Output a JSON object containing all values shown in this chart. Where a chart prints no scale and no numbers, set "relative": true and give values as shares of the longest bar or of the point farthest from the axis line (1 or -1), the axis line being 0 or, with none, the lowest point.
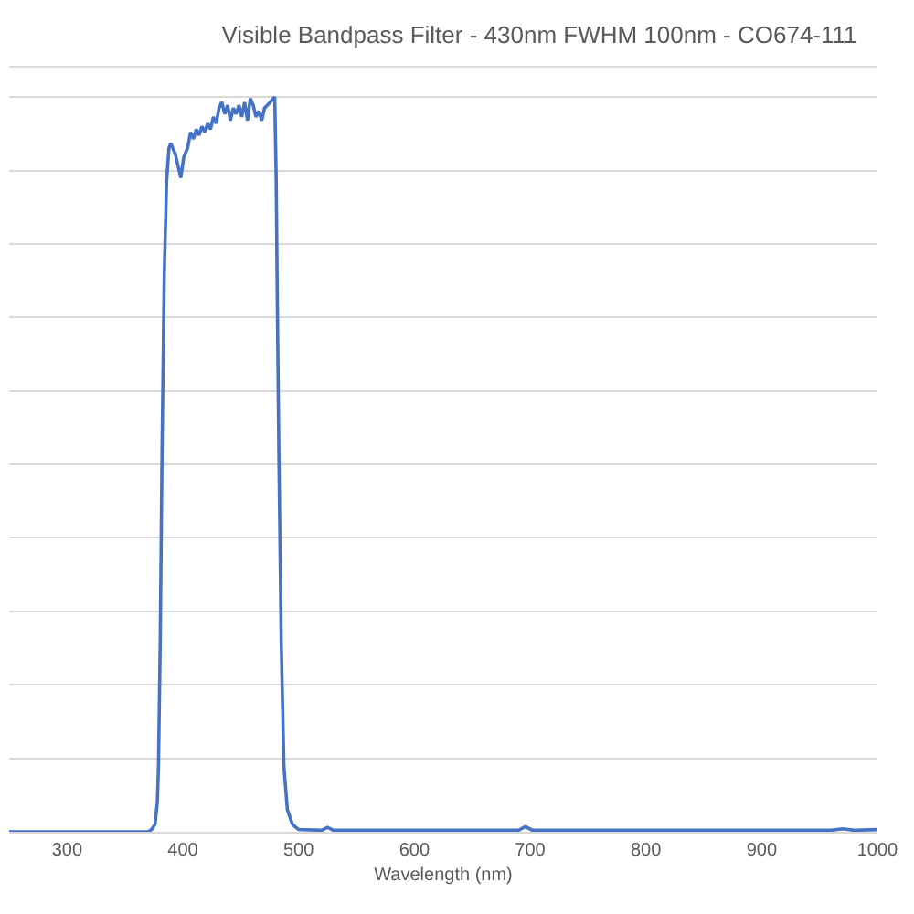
{
  "chart_data": {
    "type": "line",
    "title": "Visible Bandpass Filter - 430nm FWHM 100nm - CO674-111",
    "xlabel": "Wavelength (nm)",
    "x": [
      250,
      300,
      350,
      370,
      373,
      376,
      378,
      379,
      380.5,
      382,
      384,
      386,
      388,
      389.5,
      393.4,
      398.3,
      400.8,
      404.2,
      406.7,
      409.2,
      411.6,
      414.1,
      416.5,
      419,
      421.4,
      423.9,
      426.4,
      428.8,
      431.3,
      433.7,
      436.2,
      438.7,
      441.1,
      443.6,
      446,
      448.5,
      450.9,
      453.4,
      455.9,
      458.3,
      460.8,
      463.2,
      465.7,
      468.2,
      470.6,
      473.1,
      475.5,
      478,
      479.4,
      480.7,
      481.4,
      483,
      485,
      487.3,
      490.3,
      494.7,
      500,
      520,
      525,
      530,
      600,
      690,
      696,
      702,
      800,
      900,
      960,
      970,
      980,
      1000
    ],
    "series": [
      {
        "color": "#4472c4",
        "values": [
          0,
          0,
          0,
          0,
          0.003,
          0.01,
          0.04,
          0.09,
          0.26,
          0.51,
          0.76,
          0.885,
          0.93,
          0.937,
          0.923,
          0.89,
          0.918,
          0.931,
          0.952,
          0.943,
          0.956,
          0.948,
          0.96,
          0.952,
          0.964,
          0.956,
          0.973,
          0.964,
          0.985,
          0.993,
          0.977,
          0.989,
          0.968,
          0.985,
          0.977,
          0.989,
          0.973,
          0.993,
          0.968,
          0.998,
          0.989,
          0.973,
          0.981,
          0.968,
          0.985,
          0.989,
          0.993,
          0.998,
          1,
          0.885,
          0.76,
          0.51,
          0.26,
          0.09,
          0.03,
          0.01,
          0.003,
          0.002,
          0.006,
          0.002,
          0.002,
          0.002,
          0.007,
          0.002,
          0.002,
          0.002,
          0.002,
          0.004,
          0.002,
          0.003
        ]
      }
    ],
    "relative": true,
    "xlim": [
      250,
      1000
    ],
    "xticks": [
      300,
      400,
      500,
      600,
      700,
      800,
      900,
      1000
    ],
    "grid": "y"
  }
}
